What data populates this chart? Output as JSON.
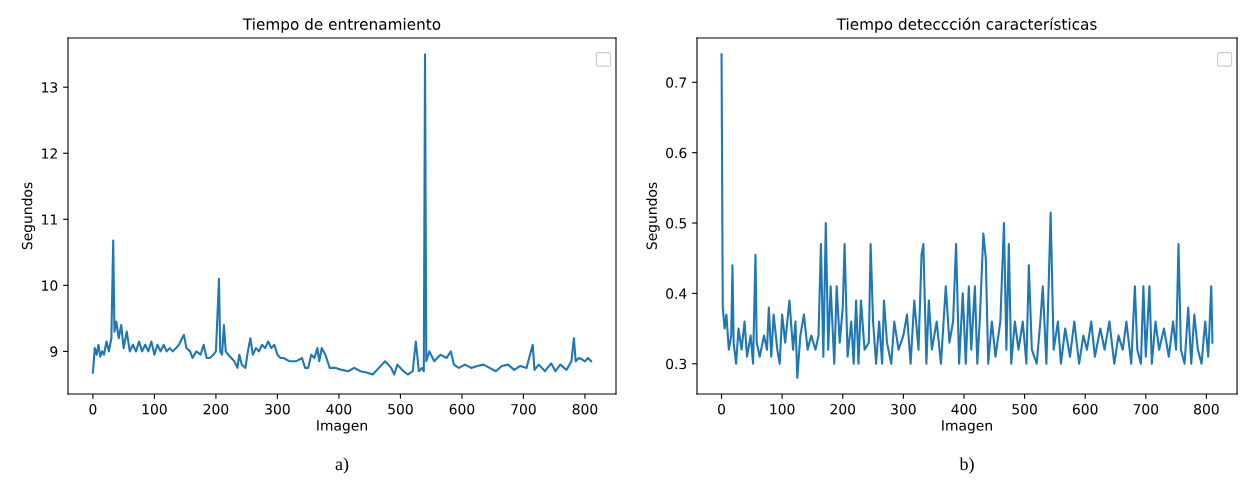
{
  "chart_data": [
    {
      "type": "line",
      "title": "Tiempo de entrenamiento",
      "xlabel": "Imagen",
      "ylabel": "Segundos",
      "annotations": [
        "a)"
      ],
      "xlim": [
        -40.5,
        850.5
      ],
      "ylim": [
        8.355,
        13.745
      ],
      "xticks": [
        0,
        100,
        200,
        300,
        400,
        500,
        600,
        700,
        800
      ],
      "yticks": [
        9,
        10,
        11,
        12,
        13
      ],
      "series": [
        {
          "color": "#1f77b4",
          "x": [
            0,
            3,
            6,
            9,
            12,
            15,
            18,
            22,
            26,
            30,
            33,
            35,
            38,
            42,
            46,
            50,
            55,
            60,
            65,
            70,
            75,
            80,
            85,
            90,
            95,
            100,
            105,
            110,
            115,
            120,
            125,
            130,
            135,
            140,
            145,
            148,
            152,
            158,
            162,
            168,
            175,
            180,
            185,
            190,
            196,
            200,
            205,
            207,
            210,
            213,
            216,
            220,
            225,
            230,
            235,
            238,
            242,
            248,
            252,
            256,
            260,
            265,
            270,
            275,
            280,
            285,
            290,
            295,
            300,
            305,
            310,
            320,
            330,
            340,
            345,
            350,
            355,
            360,
            365,
            368,
            372,
            378,
            385,
            395,
            405,
            415,
            425,
            435,
            445,
            455,
            465,
            475,
            485,
            490,
            495,
            505,
            512,
            520,
            525,
            530,
            535,
            538,
            540,
            542,
            547,
            555,
            565,
            575,
            582,
            587,
            595,
            605,
            615,
            625,
            635,
            645,
            655,
            665,
            675,
            685,
            695,
            705,
            715,
            718,
            725,
            735,
            745,
            752,
            760,
            770,
            778,
            782,
            785,
            790,
            795,
            800,
            805,
            810
          ],
          "values": [
            8.68,
            9.05,
            8.95,
            9.1,
            8.92,
            9.0,
            8.95,
            9.15,
            9.0,
            9.2,
            10.68,
            9.3,
            9.45,
            9.2,
            9.4,
            9.05,
            9.3,
            9.0,
            9.1,
            9.0,
            9.15,
            9.0,
            9.1,
            9.0,
            9.15,
            8.95,
            9.1,
            9.0,
            9.1,
            9.0,
            9.05,
            9.0,
            9.05,
            9.1,
            9.2,
            9.25,
            9.05,
            9.0,
            8.9,
            9.0,
            8.95,
            9.1,
            8.9,
            8.9,
            8.95,
            9.0,
            10.1,
            9.0,
            8.95,
            9.4,
            9.0,
            8.95,
            8.9,
            8.85,
            8.75,
            8.95,
            8.8,
            8.75,
            9.0,
            9.2,
            8.95,
            9.05,
            9.0,
            9.1,
            9.05,
            9.15,
            9.05,
            9.1,
            8.95,
            8.9,
            8.9,
            8.85,
            8.85,
            8.9,
            8.75,
            8.75,
            8.95,
            8.9,
            9.05,
            8.85,
            9.05,
            8.95,
            8.75,
            8.75,
            8.72,
            8.7,
            8.75,
            8.7,
            8.68,
            8.65,
            8.75,
            8.85,
            8.75,
            8.65,
            8.8,
            8.7,
            8.65,
            8.7,
            9.15,
            8.7,
            8.75,
            8.7,
            13.5,
            8.85,
            9.0,
            8.85,
            8.95,
            8.9,
            9.0,
            8.8,
            8.75,
            8.8,
            8.75,
            8.78,
            8.8,
            8.75,
            8.7,
            8.78,
            8.8,
            8.72,
            8.78,
            8.75,
            9.1,
            8.72,
            8.8,
            8.7,
            8.82,
            8.7,
            8.8,
            8.72,
            8.85,
            9.2,
            8.85,
            8.9,
            8.88,
            8.85,
            8.9,
            8.85
          ]
        }
      ]
    },
    {
      "type": "line",
      "title": "Tiempo deteccción características",
      "xlabel": "Imagen",
      "ylabel": "Segundos",
      "annotations": [
        "b)"
      ],
      "xlim": [
        -40.5,
        850.5
      ],
      "ylim": [
        0.257,
        0.763
      ],
      "xticks": [
        0,
        100,
        200,
        300,
        400,
        500,
        600,
        700,
        800
      ],
      "yticks": [
        0.3,
        0.4,
        0.5,
        0.6,
        0.7
      ],
      "series": [
        {
          "color": "#1f77b4",
          "x": [
            0,
            2,
            5,
            8,
            12,
            16,
            18,
            20,
            24,
            28,
            33,
            38,
            42,
            48,
            52,
            56,
            58,
            63,
            70,
            75,
            78,
            82,
            86,
            92,
            96,
            100,
            105,
            112,
            118,
            122,
            125,
            130,
            136,
            142,
            148,
            155,
            160,
            164,
            168,
            172,
            176,
            180,
            186,
            190,
            195,
            200,
            203,
            208,
            214,
            218,
            222,
            226,
            230,
            236,
            243,
            246,
            250,
            255,
            260,
            265,
            268,
            273,
            280,
            285,
            292,
            300,
            306,
            312,
            318,
            325,
            330,
            333,
            338,
            342,
            347,
            355,
            362,
            370,
            376,
            382,
            387,
            392,
            398,
            403,
            408,
            412,
            418,
            422,
            426,
            432,
            436,
            440,
            446,
            452,
            460,
            466,
            470,
            474,
            478,
            484,
            490,
            497,
            503,
            507,
            512,
            520,
            526,
            530,
            536,
            540,
            543,
            548,
            555,
            560,
            567,
            575,
            582,
            590,
            597,
            603,
            610,
            616,
            625,
            632,
            640,
            648,
            655,
            662,
            668,
            676,
            682,
            686,
            692,
            696,
            700,
            706,
            710,
            716,
            722,
            730,
            738,
            745,
            750,
            754,
            758,
            764,
            770,
            775,
            780,
            786,
            792,
            798,
            803,
            808,
            810
          ],
          "values": [
            0.74,
            0.38,
            0.35,
            0.37,
            0.32,
            0.34,
            0.44,
            0.33,
            0.3,
            0.35,
            0.32,
            0.36,
            0.31,
            0.34,
            0.3,
            0.455,
            0.33,
            0.31,
            0.34,
            0.32,
            0.38,
            0.31,
            0.37,
            0.32,
            0.3,
            0.37,
            0.33,
            0.39,
            0.32,
            0.36,
            0.28,
            0.34,
            0.37,
            0.32,
            0.34,
            0.32,
            0.34,
            0.47,
            0.31,
            0.5,
            0.32,
            0.41,
            0.3,
            0.41,
            0.33,
            0.38,
            0.47,
            0.31,
            0.36,
            0.3,
            0.39,
            0.3,
            0.39,
            0.32,
            0.33,
            0.47,
            0.36,
            0.3,
            0.36,
            0.3,
            0.39,
            0.33,
            0.3,
            0.36,
            0.32,
            0.34,
            0.37,
            0.3,
            0.39,
            0.32,
            0.455,
            0.47,
            0.3,
            0.39,
            0.32,
            0.36,
            0.3,
            0.41,
            0.33,
            0.36,
            0.47,
            0.3,
            0.4,
            0.3,
            0.41,
            0.32,
            0.41,
            0.3,
            0.36,
            0.485,
            0.45,
            0.3,
            0.36,
            0.31,
            0.36,
            0.5,
            0.32,
            0.47,
            0.3,
            0.36,
            0.32,
            0.36,
            0.3,
            0.44,
            0.32,
            0.3,
            0.36,
            0.41,
            0.3,
            0.42,
            0.515,
            0.32,
            0.36,
            0.3,
            0.35,
            0.31,
            0.36,
            0.3,
            0.34,
            0.32,
            0.36,
            0.31,
            0.35,
            0.32,
            0.36,
            0.3,
            0.34,
            0.32,
            0.36,
            0.3,
            0.41,
            0.32,
            0.3,
            0.41,
            0.31,
            0.41,
            0.3,
            0.36,
            0.32,
            0.35,
            0.31,
            0.36,
            0.32,
            0.47,
            0.32,
            0.3,
            0.38,
            0.3,
            0.37,
            0.32,
            0.3,
            0.36,
            0.31,
            0.41,
            0.33
          ]
        }
      ]
    }
  ]
}
